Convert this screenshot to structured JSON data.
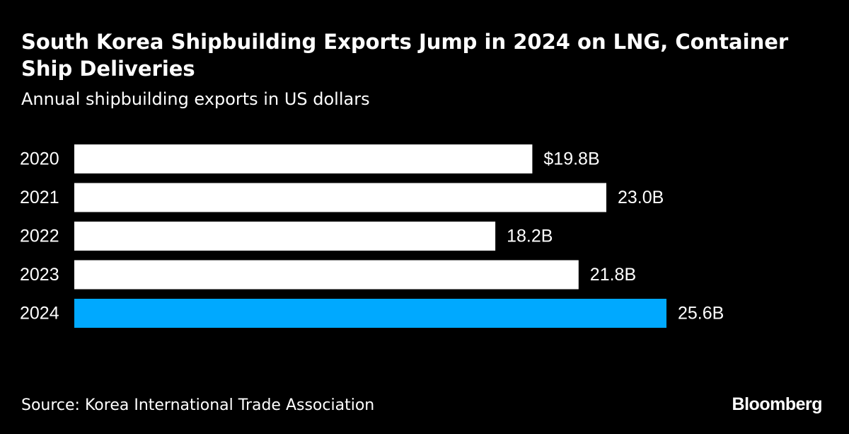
{
  "header": {
    "title": "South Korea Shipbuilding Exports Jump in 2024 on LNG, Container Ship Deliveries",
    "subtitle": "Annual shipbuilding exports in US dollars"
  },
  "footer": {
    "source": "Source: Korea International Trade Association",
    "brand": "Bloomberg"
  },
  "colors": {
    "background": "#000000",
    "default_bar": "#ffffff",
    "highlight_bar": "#00a9ff",
    "text": "#ffffff"
  },
  "chart_data": {
    "type": "bar",
    "orientation": "horizontal",
    "title": "South Korea Shipbuilding Exports Jump in 2024 on LNG, Container Ship Deliveries",
    "subtitle": "Annual shipbuilding exports in US dollars",
    "categories": [
      "2020",
      "2021",
      "2022",
      "2023",
      "2024"
    ],
    "values": [
      19.8,
      23.0,
      18.2,
      21.8,
      25.6
    ],
    "value_labels": [
      "$19.8B",
      "23.0B",
      "18.2B",
      "21.8B",
      "25.6B"
    ],
    "unit": "billion US dollars",
    "highlight": "2024",
    "xlim": [
      0,
      25.6
    ],
    "grid": false,
    "legend": "none"
  }
}
